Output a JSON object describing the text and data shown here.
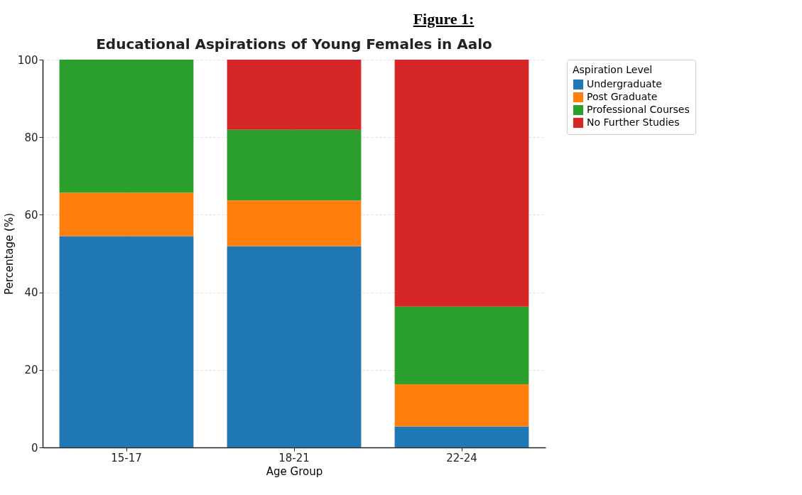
{
  "chart_data": {
    "type": "bar",
    "title": "Educational Aspirations of Young Females in Aalo",
    "annotations": [
      "Figure 1:"
    ],
    "xlabel": "Age Group",
    "ylabel": "Percentage (%)",
    "legend_title": "Aspiration Level",
    "categories": [
      "15-17",
      "18-21",
      "22-24"
    ],
    "series": [
      {
        "name": "Undergraduate",
        "color": "#1f77b4",
        "values": [
          54.5,
          51.9,
          5.4
        ]
      },
      {
        "name": "Post Graduate",
        "color": "#ff7f0e",
        "values": [
          11.2,
          11.8,
          10.9
        ]
      },
      {
        "name": "Professional Courses",
        "color": "#2ca02c",
        "values": [
          34.3,
          18.2,
          20.0
        ]
      },
      {
        "name": "No Further Studies",
        "color": "#d62728",
        "values": [
          0,
          18.1,
          63.7
        ]
      }
    ],
    "stacked": true,
    "ylim": [
      0,
      100
    ],
    "yticks": [
      0,
      20,
      40,
      60,
      80,
      100
    ],
    "grid": true,
    "legend": "top right"
  }
}
